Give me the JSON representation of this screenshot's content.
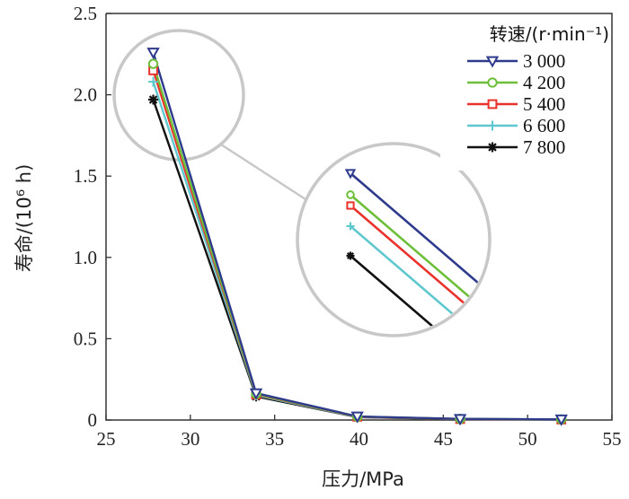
{
  "chart_data": {
    "type": "line",
    "xlabel": "压力/MPa",
    "ylabel": "寿命/(10⁶ h)",
    "xlim": [
      25,
      55
    ],
    "ylim": [
      0,
      2.5
    ],
    "xticks": [
      25,
      30,
      35,
      40,
      45,
      50,
      55
    ],
    "yticks": [
      0,
      0.5,
      1.0,
      1.5,
      2.0,
      2.5
    ],
    "xtick_labels": [
      "25",
      "30",
      "35",
      "40",
      "45",
      "50",
      "55"
    ],
    "ytick_labels": [
      "0",
      "0.5",
      "1.0",
      "1.5",
      "2.0",
      "2.5"
    ],
    "x": [
      27.8,
      33.9,
      39.9,
      46.0,
      52.0
    ],
    "legend_title": "转速/(r·min⁻¹)",
    "legend_position": "top-right",
    "series": [
      {
        "name": "3 000",
        "color": "#2e3a8c",
        "marker": "triangle-down",
        "values": [
          2.26,
          0.165,
          0.022,
          0.007,
          0.004
        ]
      },
      {
        "name": "4 200",
        "color": "#6dbf3a",
        "marker": "circle",
        "values": [
          2.19,
          0.16,
          0.021,
          0.007,
          0.004
        ]
      },
      {
        "name": "5 400",
        "color": "#e8322b",
        "marker": "square",
        "values": [
          2.15,
          0.157,
          0.02,
          0.006,
          0.003
        ]
      },
      {
        "name": "6 600",
        "color": "#5fc8cf",
        "marker": "plus",
        "values": [
          2.08,
          0.152,
          0.019,
          0.006,
          0.003
        ]
      },
      {
        "name": "7 800",
        "color": "#111111",
        "marker": "asterisk",
        "values": [
          1.97,
          0.145,
          0.018,
          0.005,
          0.003
        ]
      }
    ]
  }
}
